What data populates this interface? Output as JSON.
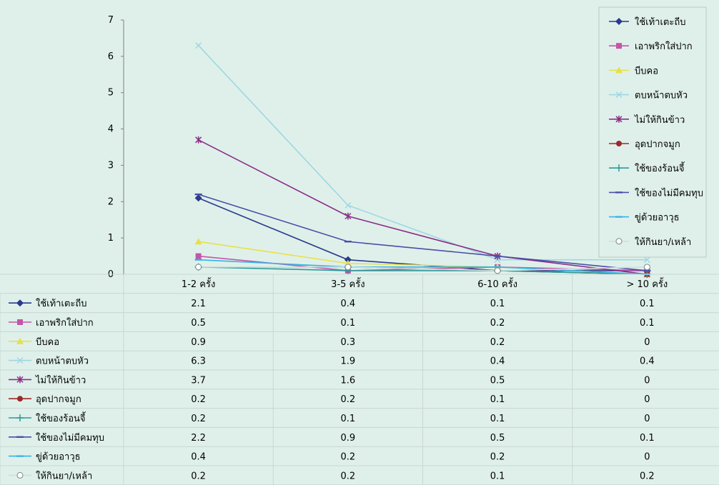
{
  "chart_data": {
    "type": "line",
    "categories": [
      "1-2 ครั้ง",
      "3-5 ครั้ง",
      "6-10 ครั้ง",
      "> 10 ครั้ง"
    ],
    "ylim": [
      0,
      7
    ],
    "yticks": [
      "0",
      "1",
      "2",
      "3",
      "4",
      "5",
      "6",
      "7"
    ],
    "grid": false,
    "legend_position": "top-right",
    "data_table": true,
    "series": [
      {
        "name": "ใช้เท้าเตะถีบ",
        "values": [
          2.1,
          0.4,
          0.1,
          0.1
        ],
        "color": "#2a3a8c",
        "marker": "diamond"
      },
      {
        "name": "เอาพริกใส่ปาก",
        "values": [
          0.5,
          0.1,
          0.2,
          0.1
        ],
        "color": "#c455a8",
        "marker": "square"
      },
      {
        "name": "บีบคอ",
        "values": [
          0.9,
          0.3,
          0.2,
          0
        ],
        "color": "#e8e04a",
        "marker": "triangle"
      },
      {
        "name": "ตบหน้าตบหัว",
        "values": [
          6.3,
          1.9,
          0.4,
          0.4
        ],
        "color": "#9fd7e3",
        "marker": "x"
      },
      {
        "name": "ไม่ให้กินข้าว",
        "values": [
          3.7,
          1.6,
          0.5,
          0
        ],
        "color": "#8a2e86",
        "marker": "star"
      },
      {
        "name": "อุดปากจมูก",
        "values": [
          0.2,
          0.2,
          0.1,
          0
        ],
        "color": "#9c2a2a",
        "marker": "circle"
      },
      {
        "name": "ใช้ของร้อนจี้",
        "values": [
          0.2,
          0.1,
          0.1,
          0
        ],
        "color": "#2a9a9a",
        "marker": "plus"
      },
      {
        "name": "ใช้ของไม่มีคมทุบ",
        "values": [
          2.2,
          0.9,
          0.5,
          0.1
        ],
        "color": "#4a4ea8",
        "marker": "dash"
      },
      {
        "name": "ขู่ด้วยอาวุธ",
        "values": [
          0.4,
          0.2,
          0.2,
          0
        ],
        "color": "#39b2e6",
        "marker": "dash"
      },
      {
        "name": "ให้กินยา/เหล้า",
        "values": [
          0.2,
          0.2,
          0.1,
          0.2
        ],
        "color": "#cfe0dc",
        "marker": "circle-open"
      }
    ]
  }
}
